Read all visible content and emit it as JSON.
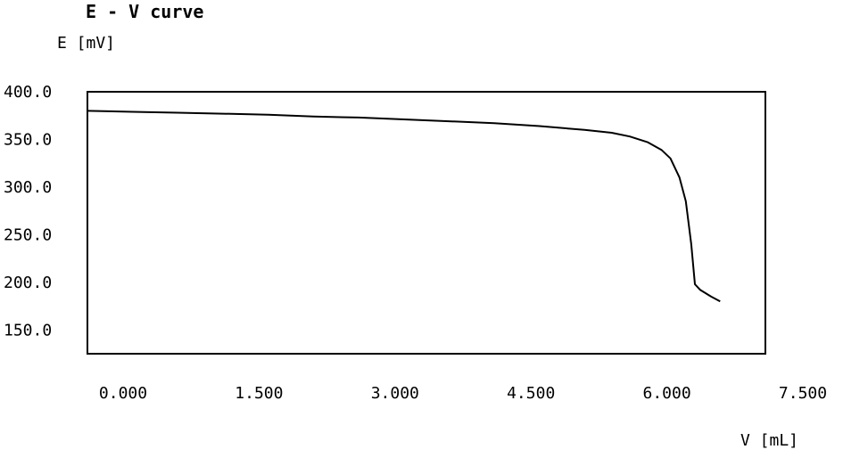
{
  "chart_data": {
    "type": "line",
    "title": "E - V curve",
    "ylabel": "E [mV]",
    "xlabel": "V [mL]",
    "xlim": [
      0,
      7.5
    ],
    "ylim": [
      125,
      400
    ],
    "grid": false,
    "x_ticks": [
      "0.000",
      "1.500",
      "3.000",
      "4.500",
      "6.000",
      "7.500"
    ],
    "y_ticks": [
      "400.0",
      "350.0",
      "300.0",
      "250.0",
      "200.0",
      "150.0"
    ],
    "y_tick_values": [
      400,
      350,
      300,
      250,
      200,
      150
    ],
    "series": [
      {
        "color": "#000000",
        "x": [
          0.0,
          0.5,
          1.0,
          1.5,
          2.0,
          2.5,
          3.0,
          3.5,
          4.0,
          4.5,
          5.0,
          5.5,
          5.8,
          6.0,
          6.2,
          6.35,
          6.45,
          6.55,
          6.62,
          6.68,
          6.72,
          6.78,
          6.9,
          7.0
        ],
        "y": [
          380,
          379,
          378,
          377,
          376,
          374,
          373,
          371,
          369,
          367,
          364,
          360,
          357,
          353,
          347,
          339,
          330,
          310,
          285,
          240,
          198,
          192,
          185,
          180
        ]
      }
    ]
  }
}
